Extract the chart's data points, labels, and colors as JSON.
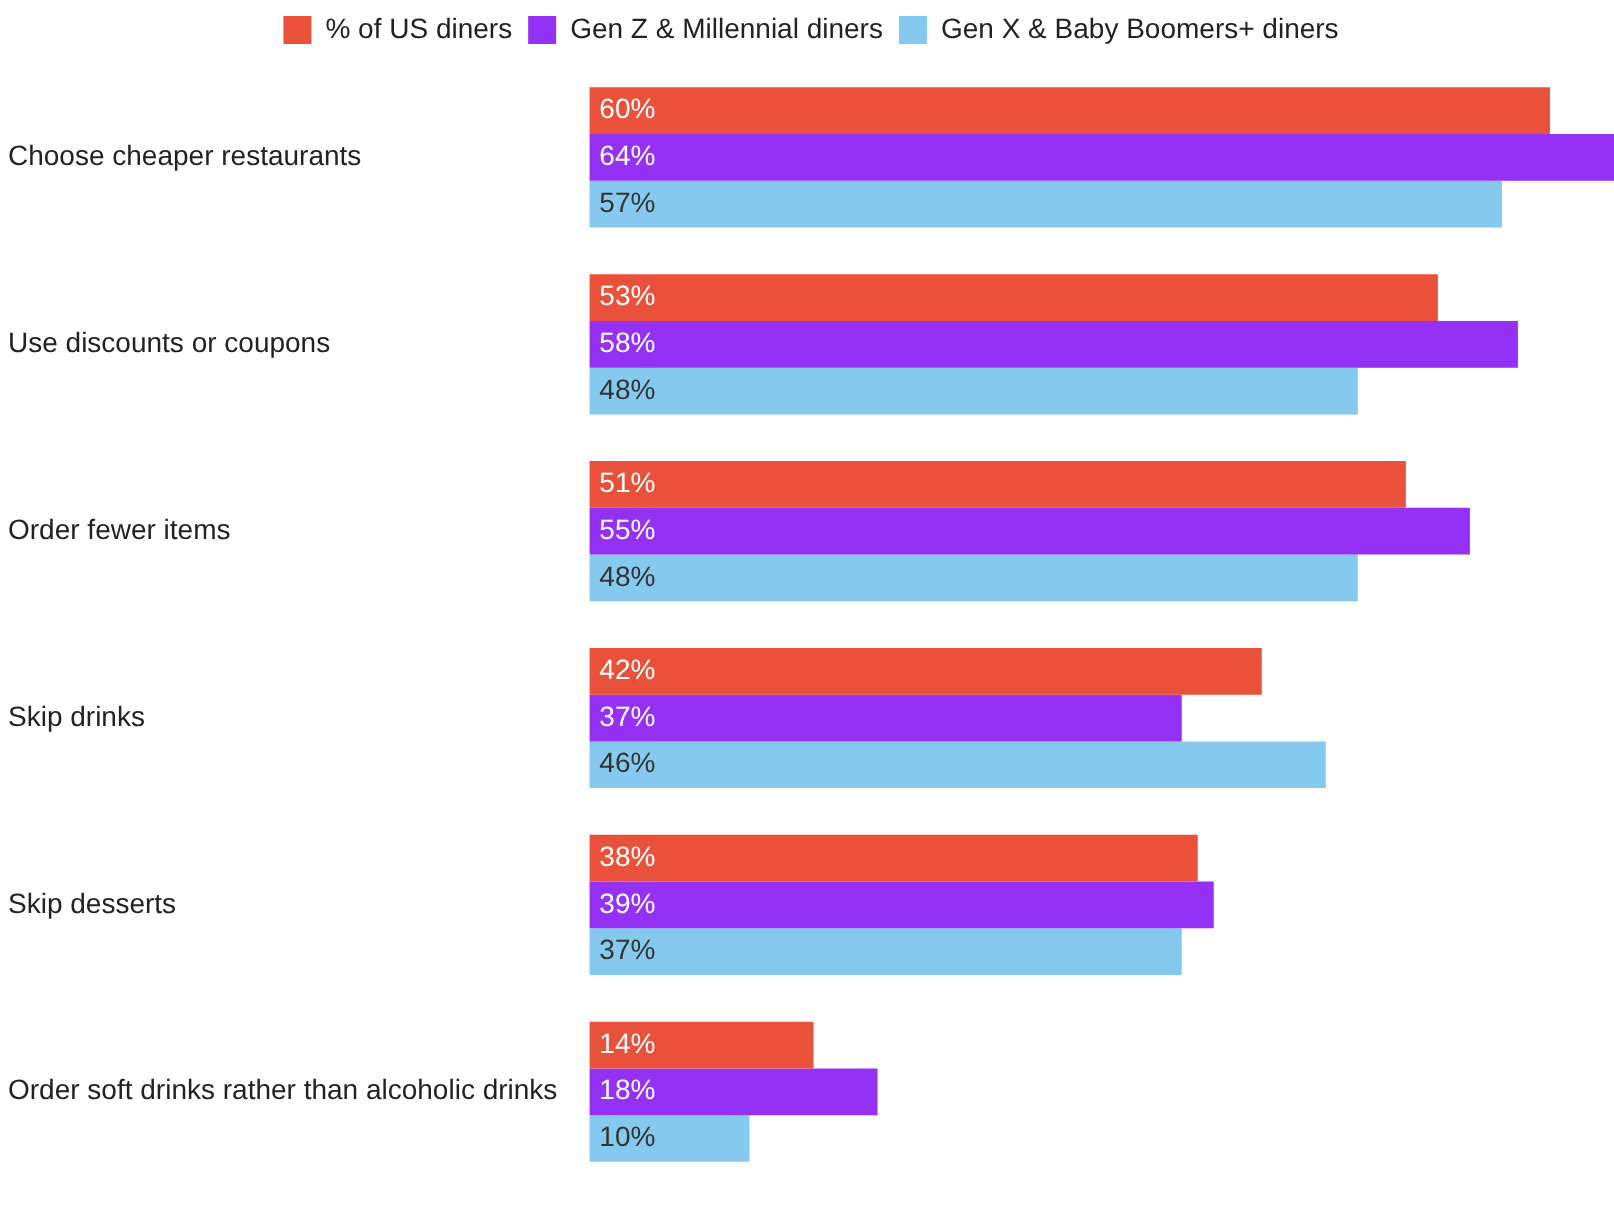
{
  "chart_data": {
    "type": "bar",
    "orientation": "horizontal",
    "categories": [
      "Choose cheaper restaurants",
      "Use discounts or coupons",
      "Order fewer items",
      "Skip drinks",
      "Skip desserts",
      "Order soft drinks rather than alcoholic drinks"
    ],
    "series": [
      {
        "name": "% of US diners",
        "color": "#e9513b",
        "values": [
          60,
          53,
          51,
          42,
          38,
          14
        ],
        "value_labels": [
          "60%",
          "53%",
          "51%",
          "42%",
          "38%",
          "14%"
        ]
      },
      {
        "name": "Gen Z & Millennial diners",
        "color": "#9431f4",
        "values": [
          64,
          58,
          55,
          37,
          39,
          18
        ],
        "value_labels": [
          "64%",
          "58%",
          "55%",
          "37%",
          "39%",
          "18%"
        ]
      },
      {
        "name": "Gen X & Baby Boomers+ diners",
        "color": "#86c9ef",
        "values": [
          57,
          48,
          48,
          46,
          37,
          10
        ],
        "value_labels": [
          "57%",
          "48%",
          "48%",
          "46%",
          "37%",
          "10%"
        ]
      }
    ],
    "legend": "top",
    "grid": false
  }
}
